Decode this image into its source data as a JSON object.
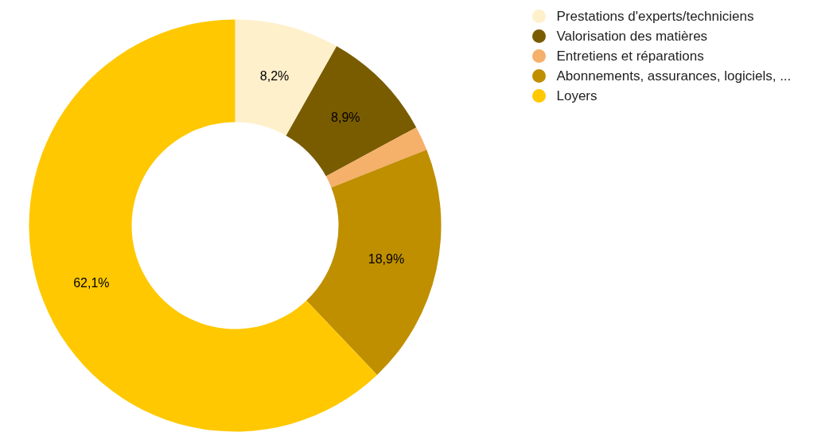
{
  "chart_data": {
    "type": "donut",
    "categories": [
      "Prestations d'experts/techniciens",
      "Valorisation des matières",
      "Entretiens et réparations",
      "Abonnements, assurances, logiciels, ...",
      "Loyers"
    ],
    "values": [
      8.2,
      8.9,
      1.9,
      18.9,
      62.1
    ],
    "value_labels": [
      "8,2%",
      "8,9%",
      null,
      "18,9%",
      "62,1%"
    ],
    "colors": [
      "#fff0cc",
      "#7a5c00",
      "#f5b06a",
      "#bf8f00",
      "#ffc800"
    ],
    "legend": "top right"
  }
}
